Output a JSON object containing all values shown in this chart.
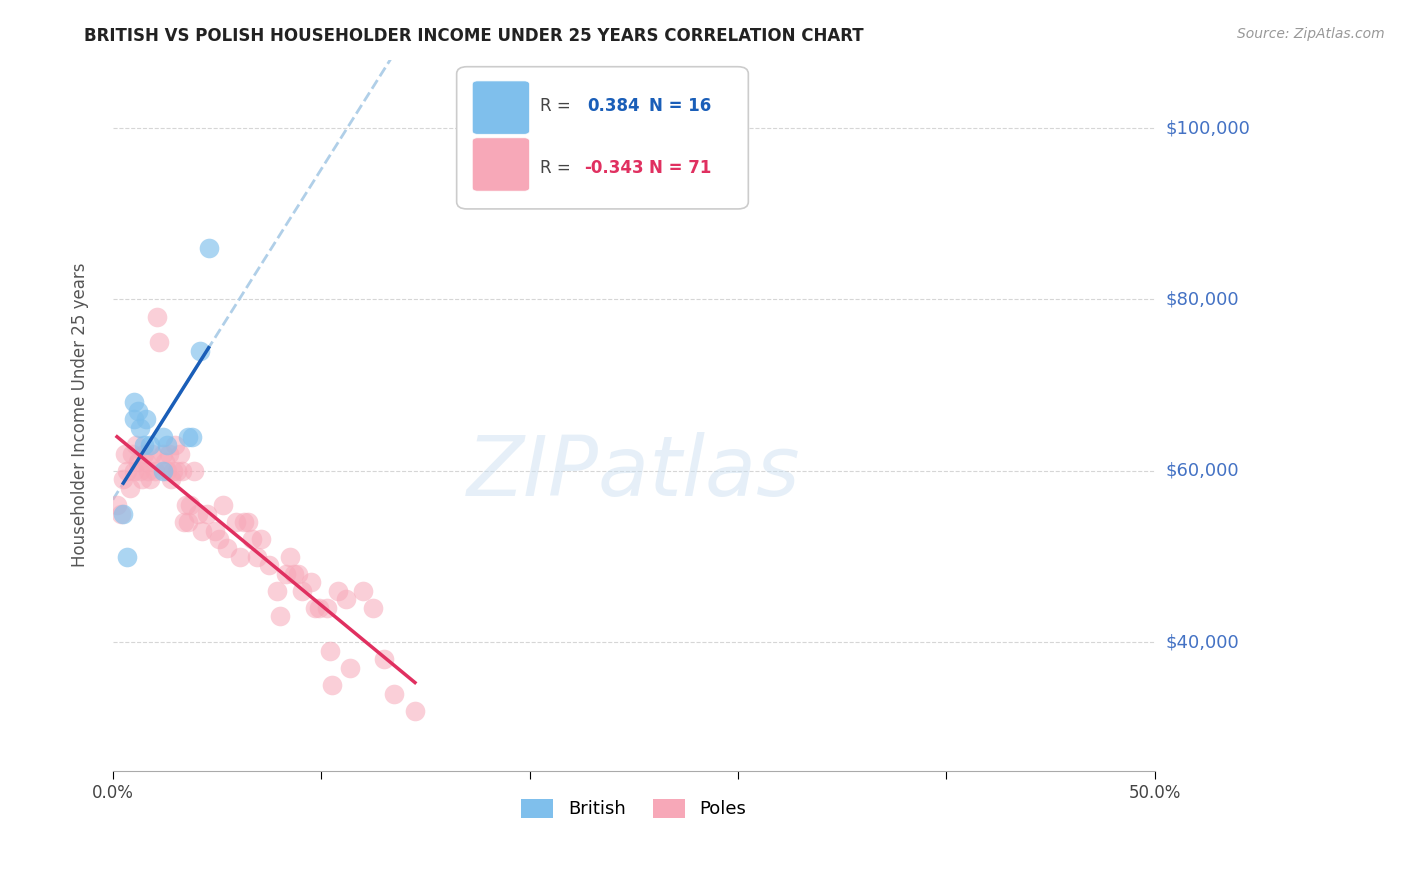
{
  "title": "BRITISH VS POLISH HOUSEHOLDER INCOME UNDER 25 YEARS CORRELATION CHART",
  "source": "Source: ZipAtlas.com",
  "ylabel": "Householder Income Under 25 years",
  "right_ytick_labels": [
    "$40,000",
    "$60,000",
    "$80,000",
    "$100,000"
  ],
  "right_ytick_values": [
    40000,
    60000,
    80000,
    100000
  ],
  "watermark": "ZIPatlas",
  "british_color": "#7fbfec",
  "poles_color": "#f7a8b8",
  "regression_british_color": "#1a5eb8",
  "regression_poles_color": "#e03060",
  "dashed_line_color": "#b0cfe8",
  "background_color": "#ffffff",
  "grid_color": "#cccccc",
  "right_label_color": "#4472c4",
  "british_scatter": {
    "x": [
      0.005,
      0.007,
      0.01,
      0.01,
      0.012,
      0.013,
      0.015,
      0.016,
      0.018,
      0.024,
      0.024,
      0.026,
      0.036,
      0.038,
      0.042,
      0.046
    ],
    "y": [
      55000,
      50000,
      68000,
      66000,
      67000,
      65000,
      63000,
      66000,
      63000,
      60000,
      64000,
      63000,
      64000,
      64000,
      74000,
      86000
    ]
  },
  "poles_scatter": {
    "x": [
      0.002,
      0.004,
      0.005,
      0.006,
      0.007,
      0.008,
      0.009,
      0.01,
      0.011,
      0.012,
      0.013,
      0.014,
      0.015,
      0.016,
      0.017,
      0.018,
      0.019,
      0.02,
      0.021,
      0.022,
      0.024,
      0.025,
      0.026,
      0.027,
      0.028,
      0.029,
      0.03,
      0.031,
      0.032,
      0.033,
      0.034,
      0.035,
      0.036,
      0.037,
      0.039,
      0.041,
      0.043,
      0.045,
      0.049,
      0.051,
      0.053,
      0.055,
      0.059,
      0.061,
      0.063,
      0.065,
      0.067,
      0.069,
      0.071,
      0.075,
      0.079,
      0.08,
      0.083,
      0.085,
      0.087,
      0.089,
      0.091,
      0.095,
      0.097,
      0.099,
      0.103,
      0.104,
      0.105,
      0.108,
      0.112,
      0.114,
      0.12,
      0.125,
      0.13,
      0.135,
      0.145
    ],
    "y": [
      56000,
      55000,
      59000,
      62000,
      60000,
      58000,
      62000,
      60000,
      63000,
      61000,
      60000,
      59000,
      62000,
      61000,
      60000,
      59000,
      62000,
      60000,
      78000,
      75000,
      62000,
      61000,
      60000,
      62000,
      59000,
      60000,
      63000,
      60000,
      62000,
      60000,
      54000,
      56000,
      54000,
      56000,
      60000,
      55000,
      53000,
      55000,
      53000,
      52000,
      56000,
      51000,
      54000,
      50000,
      54000,
      54000,
      52000,
      50000,
      52000,
      49000,
      46000,
      43000,
      48000,
      50000,
      48000,
      48000,
      46000,
      47000,
      44000,
      44000,
      44000,
      39000,
      35000,
      46000,
      45000,
      37000,
      46000,
      44000,
      38000,
      34000,
      32000
    ]
  },
  "xlim": [
    0.0,
    0.5
  ],
  "ylim": [
    25000,
    108000
  ],
  "xticks": [
    0.0,
    0.1,
    0.2,
    0.3,
    0.4,
    0.5
  ],
  "xtick_labels": [
    "0.0%",
    "",
    "",
    "",
    "",
    "50.0%"
  ],
  "figsize": [
    14.06,
    8.92
  ],
  "dpi": 100
}
